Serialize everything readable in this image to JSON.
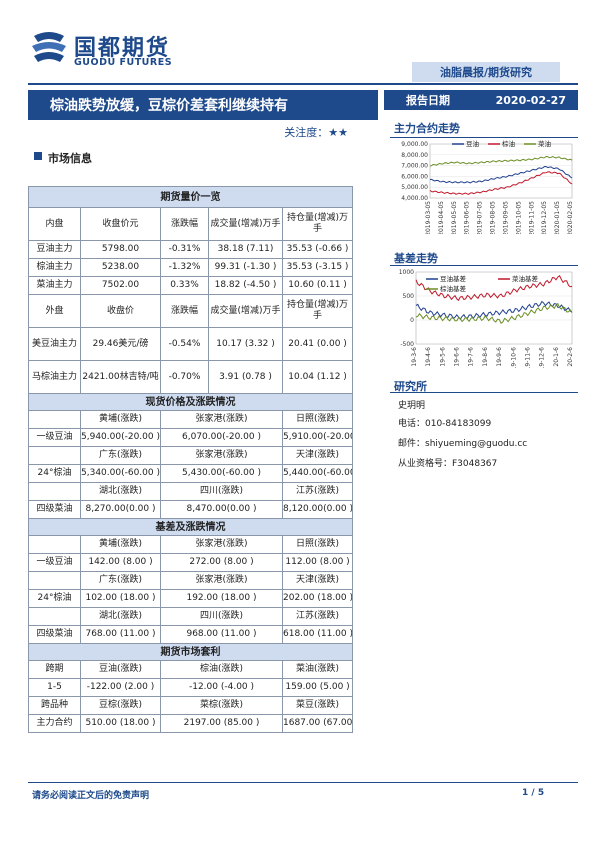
{
  "header": {
    "logo_cn": "国都期货",
    "logo_en": "GUODU FUTURES",
    "series": "油脂晨报/期货研究",
    "title": "棕油跌势放缓，豆棕价差套利继续持有",
    "attention_label": "关注度：",
    "attention_stars": "★★",
    "report_date_label": "报告日期",
    "report_date": "2020-02-27"
  },
  "market": {
    "title": "市场信息",
    "futures_title": "期货量价一览",
    "inner_headers": [
      "内盘",
      "收盘价元",
      "涨跌幅",
      "成交量(增减)万手",
      "持仓量(增减)万手"
    ],
    "inner_rows": [
      [
        "豆油主力",
        "5798.00",
        "-0.31%",
        "38.18 (7.11)",
        "35.53 (-0.66 )"
      ],
      [
        "棕油主力",
        "5238.00",
        "-1.32%",
        "99.31 (-1.30 )",
        "35.53 (-3.15 )"
      ],
      [
        "菜油主力",
        "7502.00",
        "0.33%",
        "18.82 (-4.50 )",
        "10.60 (0.11 )"
      ]
    ],
    "outer_headers": [
      "外盘",
      "收盘价",
      "涨跌幅",
      "成交量(增减)万手",
      "持仓量(增减)万手"
    ],
    "outer_rows": [
      [
        "美豆油主力",
        "29.46美元/磅",
        "-0.54%",
        "10.17 (3.32 )",
        "20.41 (0.00 )"
      ],
      [
        "马棕油主力",
        "2421.00林吉特/吨",
        "-0.70%",
        "3.91 (0.78 )",
        "10.04 (1.12 )"
      ]
    ],
    "spot_title": "现货价格及涨跌情况",
    "spot_rows": [
      [
        "",
        "黄埔(涨跌)",
        "张家港(涨跌)",
        "日照(涨跌)"
      ],
      [
        "一级豆油",
        "5,940.00(-20.00 )",
        "6,070.00(-20.00 )",
        "5,910.00(-20.00 )"
      ],
      [
        "",
        "广东(涨跌)",
        "张家港(涨跌)",
        "天津(涨跌)"
      ],
      [
        "24°棕油",
        "5,340.00(-60.00 )",
        "5,430.00(-60.00 )",
        "5,440.00(-60.00 )"
      ],
      [
        "",
        "湖北(涨跌)",
        "四川(涨跌)",
        "江苏(涨跌)"
      ],
      [
        "四级菜油",
        "8,270.00(0.00 )",
        "8,470.00(0.00 )",
        "8,120.00(0.00 )"
      ]
    ],
    "basis_title": "基差及涨跌情况",
    "basis_rows": [
      [
        "",
        "黄埔(涨跌)",
        "张家港(涨跌)",
        "日照(涨跌)"
      ],
      [
        "一级豆油",
        "142.00 (8.00 )",
        "272.00 (8.00 )",
        "112.00 (8.00 )"
      ],
      [
        "",
        "广东(涨跌)",
        "张家港(涨跌)",
        "天津(涨跌)"
      ],
      [
        "24°棕油",
        "102.00 (18.00 )",
        "192.00 (18.00 )",
        "202.00 (18.00 )"
      ],
      [
        "",
        "湖北(涨跌)",
        "四川(涨跌)",
        "江苏(涨跌)"
      ],
      [
        "四级菜油",
        "768.00 (11.00 )",
        "968.00 (11.00 )",
        "618.00 (11.00 )"
      ]
    ],
    "arb_title": "期货市场套利",
    "arb_rows": [
      [
        "跨期",
        "豆油(涨跌)",
        "棕油(涨跌)",
        "菜油(涨跌)"
      ],
      [
        "1-5",
        "-122.00 (2.00 )",
        "-12.00 (-4.00 )",
        "159.00    (5.00 )"
      ],
      [
        "跨品种",
        "豆棕(涨跌)",
        "菜棕(涨跌)",
        "菜豆(涨跌)"
      ],
      [
        "主力合约",
        "510.00 (18.00 )",
        "2197.00 (85.00 )",
        "1687.00 (67.00 )"
      ]
    ]
  },
  "sidebar": {
    "main_contract_title": "主力合约走势",
    "basis_title": "基差走势",
    "institute_title": "研究所",
    "researcher": "史玥明",
    "phone": "电话：010-84183099",
    "email": "邮件：shiyueming@guodu.cc",
    "license": "从业资格号：F3048367"
  },
  "chart_data": [
    {
      "type": "line",
      "title": "主力合约走势",
      "x": [
        "2019-03-05",
        "2019-04-05",
        "2019-05-05",
        "2019-06-05",
        "2019-07-05",
        "2019-08-05",
        "2019-09-05",
        "2019-10-05",
        "2019-11-05",
        "2019-12-05",
        "2020-01-05",
        "2020-02-05"
      ],
      "ylim": [
        4000,
        9000
      ],
      "yticks": [
        "4,000.00",
        "5,000.00",
        "6,000.00",
        "7,000.00",
        "8,000.00",
        "9,000.00"
      ],
      "series": [
        {
          "name": "豆油",
          "color": "#1f3f8f",
          "values": [
            5700,
            5500,
            5450,
            5450,
            5550,
            5800,
            6000,
            6300,
            6600,
            6900,
            6700,
            5850
          ]
        },
        {
          "name": "棕油",
          "color": "#c0182a",
          "values": [
            4650,
            4500,
            4400,
            4400,
            4550,
            4800,
            5000,
            5400,
            5900,
            6400,
            6300,
            5300
          ]
        },
        {
          "name": "菜油",
          "color": "#6b8e23",
          "values": [
            7000,
            7200,
            7300,
            7200,
            7300,
            7400,
            7450,
            7500,
            7600,
            7800,
            7750,
            7500
          ]
        }
      ]
    },
    {
      "type": "line",
      "title": "基差走势",
      "x": [
        "19-3-6",
        "19-4-6",
        "19-5-6",
        "19-6-6",
        "19-7-6",
        "19-8-6",
        "19-9-6",
        "19-10-6",
        "19-11-6",
        "19-12-6",
        "20-1-6",
        "20-2-6"
      ],
      "ylim": [
        -500,
        1000
      ],
      "yticks": [
        "-500",
        "0",
        "500",
        "1000"
      ],
      "series": [
        {
          "name": "豆油基差",
          "color": "#1f3f8f",
          "values": [
            300,
            150,
            100,
            60,
            80,
            120,
            160,
            200,
            280,
            350,
            300,
            180
          ]
        },
        {
          "name": "菜油基差",
          "color": "#c0182a",
          "values": [
            800,
            600,
            500,
            450,
            480,
            520,
            500,
            620,
            700,
            750,
            900,
            700
          ]
        },
        {
          "name": "棕油基差",
          "color": "#6b8e23",
          "values": [
            100,
            50,
            30,
            10,
            20,
            40,
            -30,
            50,
            150,
            250,
            300,
            150
          ]
        }
      ]
    }
  ],
  "footer": {
    "disclaimer": "请务必阅读正文后的免责声明",
    "page": "1 / 5"
  }
}
